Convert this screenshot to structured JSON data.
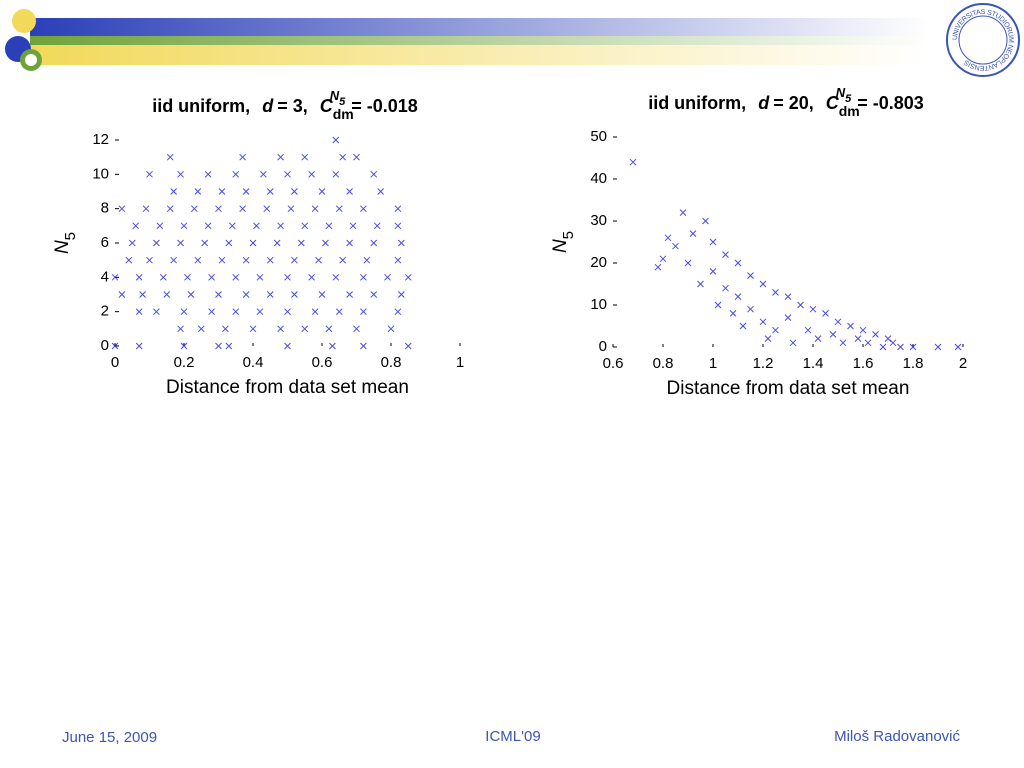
{
  "chart_data": [
    {
      "type": "scatter",
      "title": {
        "prefix": "iid uniform,",
        "d": "d",
        "d_value": "= 3,",
        "symbol": "C",
        "sub": "dm",
        "sup": "N",
        "sup_sub": "5",
        "value": "= -0.018"
      },
      "x_label": "Distance from data set mean",
      "y_label": {
        "symbol": "N",
        "sub": "5"
      },
      "color": "#1a1ae6",
      "xlim": [
        0,
        1
      ],
      "xticks": [
        0,
        0.2,
        0.4,
        0.6,
        0.8,
        1
      ],
      "ylim": [
        0,
        12
      ],
      "yticks": [
        0,
        2,
        4,
        6,
        8,
        10,
        12
      ],
      "x": [
        0.0,
        0.07,
        0.2,
        0.3,
        0.33,
        0.5,
        0.63,
        0.72,
        0.85,
        0.19,
        0.25,
        0.32,
        0.4,
        0.48,
        0.55,
        0.62,
        0.7,
        0.8,
        0.07,
        0.12,
        0.2,
        0.28,
        0.35,
        0.42,
        0.5,
        0.58,
        0.65,
        0.72,
        0.82,
        0.02,
        0.08,
        0.15,
        0.22,
        0.3,
        0.38,
        0.45,
        0.52,
        0.6,
        0.68,
        0.75,
        0.83,
        0.0,
        0.07,
        0.14,
        0.21,
        0.28,
        0.35,
        0.42,
        0.5,
        0.57,
        0.64,
        0.72,
        0.79,
        0.85,
        0.04,
        0.1,
        0.17,
        0.24,
        0.31,
        0.38,
        0.45,
        0.52,
        0.59,
        0.66,
        0.73,
        0.82,
        0.05,
        0.12,
        0.19,
        0.26,
        0.33,
        0.4,
        0.47,
        0.54,
        0.61,
        0.68,
        0.75,
        0.83,
        0.06,
        0.13,
        0.2,
        0.27,
        0.34,
        0.41,
        0.48,
        0.55,
        0.62,
        0.69,
        0.76,
        0.82,
        0.02,
        0.09,
        0.16,
        0.23,
        0.3,
        0.37,
        0.44,
        0.51,
        0.58,
        0.65,
        0.72,
        0.82,
        0.17,
        0.24,
        0.31,
        0.38,
        0.45,
        0.52,
        0.6,
        0.68,
        0.77,
        0.1,
        0.19,
        0.27,
        0.35,
        0.43,
        0.5,
        0.57,
        0.64,
        0.75,
        0.16,
        0.37,
        0.48,
        0.55,
        0.66,
        0.7,
        0.64
      ],
      "values": [
        0,
        0,
        0,
        0,
        0,
        0,
        0,
        0,
        0,
        1,
        1,
        1,
        1,
        1,
        1,
        1,
        1,
        1,
        2,
        2,
        2,
        2,
        2,
        2,
        2,
        2,
        2,
        2,
        2,
        3,
        3,
        3,
        3,
        3,
        3,
        3,
        3,
        3,
        3,
        3,
        3,
        4,
        4,
        4,
        4,
        4,
        4,
        4,
        4,
        4,
        4,
        4,
        4,
        4,
        5,
        5,
        5,
        5,
        5,
        5,
        5,
        5,
        5,
        5,
        5,
        5,
        6,
        6,
        6,
        6,
        6,
        6,
        6,
        6,
        6,
        6,
        6,
        6,
        7,
        7,
        7,
        7,
        7,
        7,
        7,
        7,
        7,
        7,
        7,
        7,
        8,
        8,
        8,
        8,
        8,
        8,
        8,
        8,
        8,
        8,
        8,
        8,
        9,
        9,
        9,
        9,
        9,
        9,
        9,
        9,
        9,
        10,
        10,
        10,
        10,
        10,
        10,
        10,
        10,
        10,
        11,
        11,
        11,
        11,
        11,
        11,
        12
      ]
    },
    {
      "type": "scatter",
      "title": {
        "prefix": "iid uniform,",
        "d": "d",
        "d_value": "= 20,",
        "symbol": "C",
        "sub": "dm",
        "sup": "N",
        "sup_sub": "5",
        "value": "= -0.803"
      },
      "x_label": "Distance from data set mean",
      "y_label": {
        "symbol": "N",
        "sub": "5"
      },
      "color": "#1a1ae6",
      "xlim": [
        0.6,
        2
      ],
      "xticks": [
        0.6,
        0.8,
        1,
        1.2,
        1.4,
        1.6,
        1.8,
        2
      ],
      "ylim": [
        0,
        50
      ],
      "yticks": [
        0,
        10,
        20,
        30,
        40,
        50
      ],
      "x": [
        0.68,
        0.78,
        0.8,
        0.82,
        0.85,
        0.88,
        0.9,
        0.92,
        0.95,
        0.97,
        1.0,
        1.0,
        1.02,
        1.05,
        1.05,
        1.08,
        1.1,
        1.1,
        1.12,
        1.15,
        1.15,
        1.2,
        1.2,
        1.22,
        1.25,
        1.25,
        1.3,
        1.3,
        1.32,
        1.35,
        1.38,
        1.4,
        1.42,
        1.45,
        1.48,
        1.5,
        1.52,
        1.55,
        1.58,
        1.6,
        1.62,
        1.65,
        1.68,
        1.7,
        1.72,
        1.75,
        1.8,
        1.9,
        1.98
      ],
      "values": [
        44,
        19,
        21,
        26,
        24,
        32,
        20,
        27,
        15,
        30,
        25,
        18,
        10,
        22,
        14,
        8,
        20,
        12,
        5,
        17,
        9,
        15,
        6,
        2,
        13,
        4,
        12,
        7,
        1,
        10,
        4,
        9,
        2,
        8,
        3,
        6,
        1,
        5,
        2,
        4,
        1,
        3,
        0,
        2,
        1,
        0,
        0,
        0,
        0
      ]
    }
  ],
  "logo": "UNIVERSITAS STUDIORUM NEOPLANTENSIS",
  "footer": {
    "date": "June 15, 2009",
    "venue": "ICML'09",
    "author": "Miloš Radovanović"
  }
}
